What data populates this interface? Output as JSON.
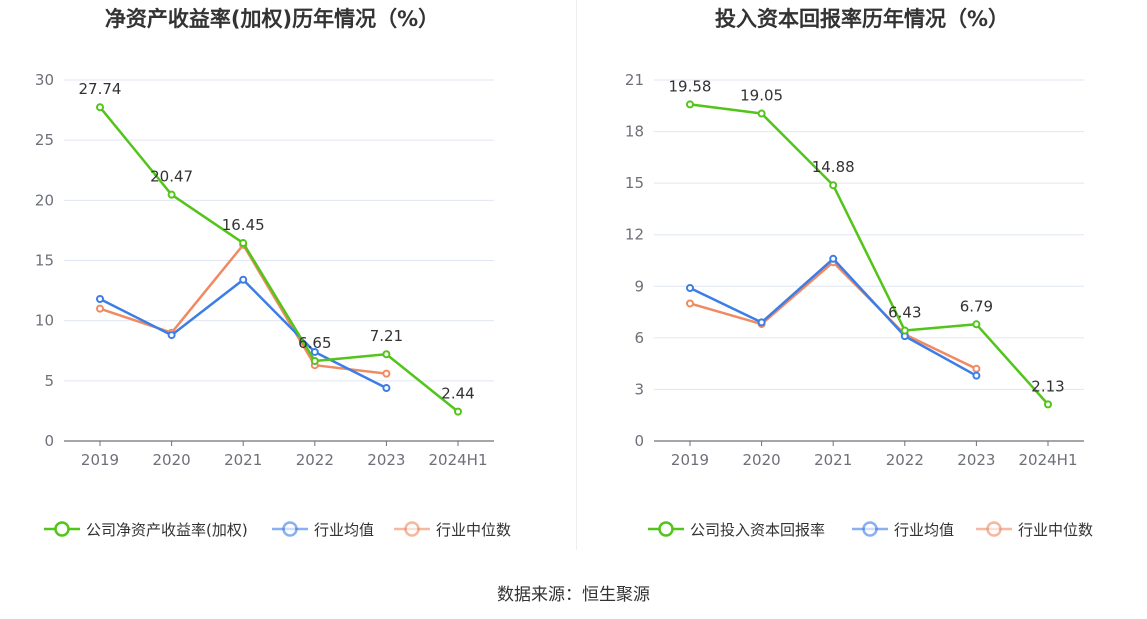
{
  "chart_data": [
    {
      "type": "line",
      "title": "净资产收益率(加权)历年情况（%）",
      "categories": [
        "2019",
        "2020",
        "2021",
        "2022",
        "2023",
        "2024H1"
      ],
      "ylim": [
        0,
        30
      ],
      "yticks": [
        0,
        5,
        10,
        15,
        20,
        25,
        30
      ],
      "grid": true,
      "legend_position": "bottom",
      "series": [
        {
          "name": "公司净资产收益率(加权)",
          "color": "#52c41a",
          "labeled": true,
          "values": [
            27.74,
            20.47,
            16.45,
            6.65,
            7.21,
            2.44
          ]
        },
        {
          "name": "行业均值",
          "color": "#3d7de6",
          "labeled": false,
          "values": [
            11.8,
            8.8,
            13.4,
            7.4,
            4.4,
            null
          ]
        },
        {
          "name": "行业中位数",
          "color": "#f08a62",
          "labeled": false,
          "values": [
            11.0,
            9.0,
            16.3,
            6.3,
            5.6,
            null
          ]
        }
      ]
    },
    {
      "type": "line",
      "title": "投入资本回报率历年情况（%）",
      "categories": [
        "2019",
        "2020",
        "2021",
        "2022",
        "2023",
        "2024H1"
      ],
      "ylim": [
        0,
        21
      ],
      "yticks": [
        0,
        3,
        6,
        9,
        12,
        15,
        18,
        21
      ],
      "grid": true,
      "legend_position": "bottom",
      "series": [
        {
          "name": "公司投入资本回报率",
          "color": "#52c41a",
          "labeled": true,
          "values": [
            19.58,
            19.05,
            14.88,
            6.43,
            6.79,
            2.13
          ]
        },
        {
          "name": "行业均值",
          "color": "#3d7de6",
          "labeled": false,
          "values": [
            8.9,
            6.9,
            10.6,
            6.1,
            3.8,
            null
          ]
        },
        {
          "name": "行业中位数",
          "color": "#f08a62",
          "labeled": false,
          "values": [
            8.0,
            6.8,
            10.4,
            6.2,
            4.2,
            null
          ]
        }
      ]
    }
  ],
  "source": "数据来源：恒生聚源"
}
